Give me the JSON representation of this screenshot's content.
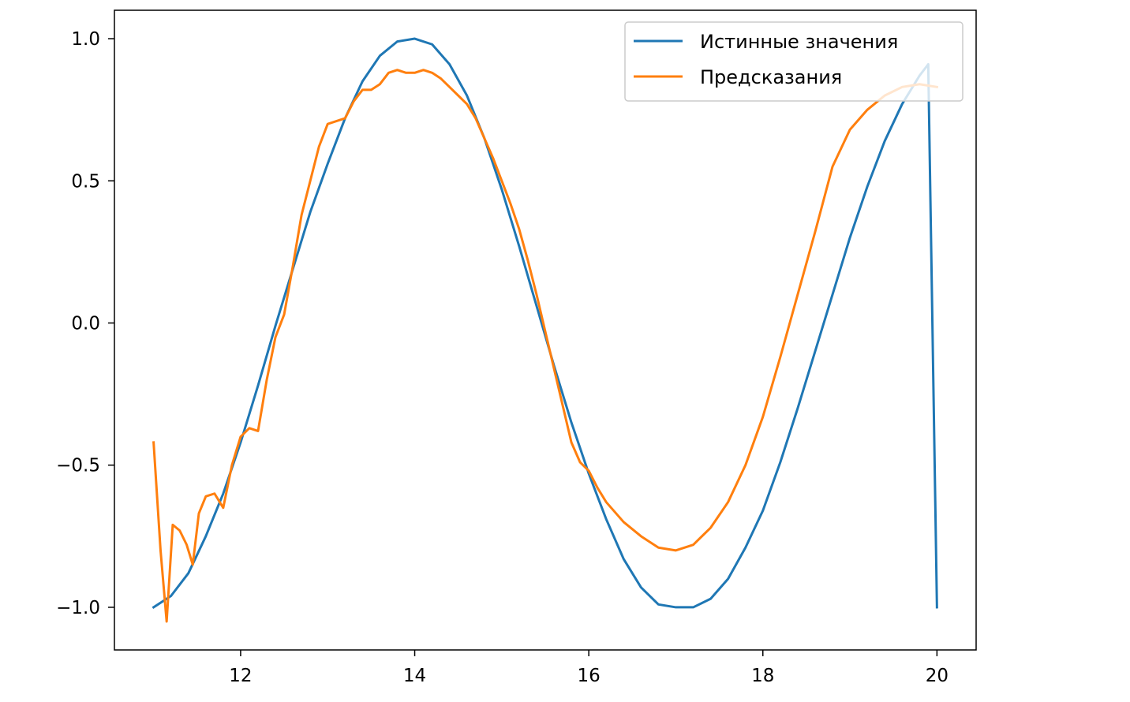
{
  "chart_data": {
    "type": "line",
    "xlim": [
      10.55,
      20.45
    ],
    "ylim": [
      -1.15,
      1.1
    ],
    "xticks": [
      12,
      14,
      16,
      18,
      20
    ],
    "yticks": [
      -1.0,
      -0.5,
      0.0,
      0.5,
      1.0
    ],
    "xtick_labels": [
      "12",
      "14",
      "16",
      "18",
      "20"
    ],
    "ytick_labels": [
      "−1.0",
      "−0.5",
      "0.0",
      "0.5",
      "1.0"
    ],
    "grid": false,
    "legend_position": "top-right",
    "series": [
      {
        "name": "Истинные значения",
        "color": "#1f77b4",
        "x": [
          11.0,
          11.2,
          11.4,
          11.6,
          11.8,
          12.0,
          12.2,
          12.4,
          12.6,
          12.8,
          13.0,
          13.2,
          13.4,
          13.6,
          13.8,
          14.0,
          14.2,
          14.4,
          14.6,
          14.8,
          15.0,
          15.2,
          15.4,
          15.6,
          15.8,
          16.0,
          16.2,
          16.4,
          16.6,
          16.8,
          17.0,
          17.2,
          17.4,
          17.6,
          17.8,
          18.0,
          18.2,
          18.4,
          18.6,
          18.8,
          19.0,
          19.2,
          19.4,
          19.6,
          19.8,
          19.9,
          20.0
        ],
        "y": [
          -1.0,
          -0.96,
          -0.88,
          -0.75,
          -0.6,
          -0.42,
          -0.22,
          -0.01,
          0.19,
          0.39,
          0.56,
          0.72,
          0.85,
          0.94,
          0.99,
          1.0,
          0.98,
          0.91,
          0.8,
          0.65,
          0.47,
          0.27,
          0.06,
          -0.15,
          -0.35,
          -0.53,
          -0.69,
          -0.83,
          -0.93,
          -0.99,
          -1.0,
          -1.0,
          -0.97,
          -0.9,
          -0.79,
          -0.66,
          -0.49,
          -0.3,
          -0.1,
          0.1,
          0.3,
          0.48,
          0.64,
          0.77,
          0.87,
          0.91,
          -1.0
        ]
      },
      {
        "name": "Предсказания",
        "color": "#ff7f0e",
        "x": [
          11.0,
          11.08,
          11.15,
          11.22,
          11.3,
          11.38,
          11.45,
          11.52,
          11.6,
          11.7,
          11.8,
          11.9,
          12.0,
          12.1,
          12.2,
          12.3,
          12.4,
          12.5,
          12.6,
          12.7,
          12.8,
          12.9,
          13.0,
          13.1,
          13.2,
          13.3,
          13.4,
          13.5,
          13.6,
          13.7,
          13.8,
          13.9,
          14.0,
          14.1,
          14.2,
          14.3,
          14.4,
          14.5,
          14.6,
          14.7,
          14.8,
          14.9,
          15.0,
          15.1,
          15.2,
          15.3,
          15.4,
          15.5,
          15.6,
          15.7,
          15.8,
          15.9,
          16.0,
          16.1,
          16.2,
          16.4,
          16.6,
          16.8,
          17.0,
          17.2,
          17.4,
          17.6,
          17.8,
          18.0,
          18.2,
          18.4,
          18.6,
          18.8,
          19.0,
          19.2,
          19.4,
          19.6,
          19.8,
          20.0
        ],
        "y": [
          -0.42,
          -0.8,
          -1.05,
          -0.71,
          -0.73,
          -0.78,
          -0.85,
          -0.67,
          -0.61,
          -0.6,
          -0.65,
          -0.5,
          -0.4,
          -0.37,
          -0.38,
          -0.2,
          -0.05,
          0.03,
          0.2,
          0.38,
          0.5,
          0.62,
          0.7,
          0.71,
          0.72,
          0.78,
          0.82,
          0.82,
          0.84,
          0.88,
          0.89,
          0.88,
          0.88,
          0.89,
          0.88,
          0.86,
          0.83,
          0.8,
          0.77,
          0.72,
          0.65,
          0.58,
          0.5,
          0.42,
          0.33,
          0.22,
          0.1,
          -0.03,
          -0.16,
          -0.29,
          -0.42,
          -0.49,
          -0.52,
          -0.58,
          -0.63,
          -0.7,
          -0.75,
          -0.79,
          -0.8,
          -0.78,
          -0.72,
          -0.63,
          -0.5,
          -0.33,
          -0.12,
          0.1,
          0.32,
          0.55,
          0.68,
          0.75,
          0.8,
          0.83,
          0.84,
          0.83
        ]
      }
    ]
  }
}
